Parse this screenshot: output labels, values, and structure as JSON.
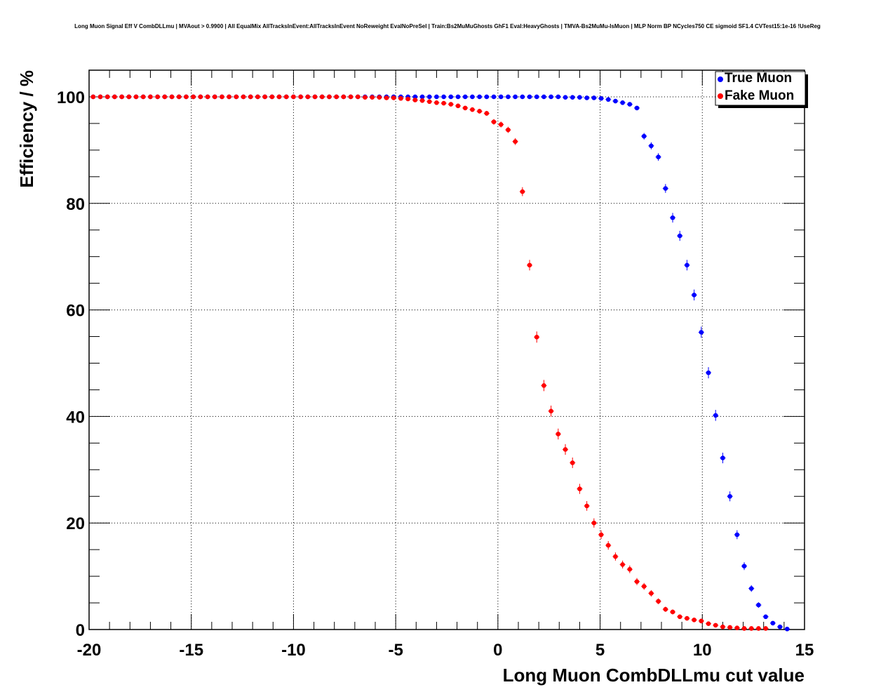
{
  "chart_data": {
    "type": "scatter",
    "title": "Long Muon Signal Eff V CombDLLmu | MVAout > 0.9900 | All EqualMix AllTracksInEvent:AllTracksInEvent NoReweight EvalNoPreSel | Train:Bs2MuMuGhosts GhF1 Eval:HeavyGhosts | TMVA-Bs2MuMu-IsMuon | MLP Norm BP NCycles750 CE sigmoid SF1.4 CVTest15:1e-16 !UseReg",
    "xlabel": "Long Muon CombDLLmu cut value",
    "ylabel": "Efficiency / %",
    "xlim": [
      -20,
      15
    ],
    "ylim": [
      0,
      105
    ],
    "xticks": [
      -20,
      -15,
      -10,
      -5,
      0,
      5,
      10,
      15
    ],
    "yticks": [
      0,
      20,
      40,
      60,
      80,
      100
    ],
    "grid": true,
    "legend_position": "top-right",
    "series": [
      {
        "name": "True Muon",
        "color": "#0000ff",
        "x": [
          -19.8,
          -19.45,
          -19.1,
          -18.75,
          -18.4,
          -18.05,
          -17.7,
          -17.35,
          -17.0,
          -16.65,
          -16.3,
          -15.95,
          -15.6,
          -15.25,
          -14.9,
          -14.55,
          -14.2,
          -13.85,
          -13.5,
          -13.15,
          -12.8,
          -12.45,
          -12.1,
          -11.75,
          -11.4,
          -11.05,
          -10.7,
          -10.35,
          -10.0,
          -9.65,
          -9.3,
          -8.95,
          -8.6,
          -8.25,
          -7.9,
          -7.55,
          -7.2,
          -6.85,
          -6.5,
          -6.15,
          -5.8,
          -5.45,
          -5.1,
          -4.75,
          -4.4,
          -4.05,
          -3.7,
          -3.35,
          -3.0,
          -2.65,
          -2.3,
          -1.95,
          -1.6,
          -1.25,
          -0.9,
          -0.55,
          -0.2,
          0.15,
          0.5,
          0.85,
          1.2,
          1.55,
          1.9,
          2.25,
          2.6,
          2.95,
          3.3,
          3.65,
          4.0,
          4.35,
          4.7,
          5.05,
          5.4,
          5.75,
          6.1,
          6.45,
          6.8,
          7.15,
          7.5,
          7.85,
          8.2,
          8.55,
          8.9,
          9.25,
          9.6,
          9.95,
          10.3,
          10.65,
          11.0,
          11.35,
          11.7,
          12.05,
          12.4,
          12.75,
          13.1,
          13.45,
          13.8,
          14.15
        ],
        "y": [
          100,
          100,
          100,
          100,
          100,
          100,
          100,
          100,
          100,
          100,
          100,
          100,
          100,
          100,
          100,
          100,
          100,
          100,
          100,
          100,
          100,
          100,
          100,
          100,
          100,
          100,
          100,
          100,
          100,
          100,
          100,
          100,
          100,
          100,
          100,
          100,
          100,
          100,
          100,
          100,
          100,
          100,
          100,
          100,
          100,
          100,
          100,
          100,
          100,
          100,
          100,
          100,
          100,
          100,
          100,
          100,
          100,
          100,
          100,
          100,
          100,
          100,
          100,
          100,
          100,
          100,
          99.9,
          99.9,
          99.9,
          99.8,
          99.8,
          99.7,
          99.5,
          99.2,
          98.9,
          98.6,
          97.9,
          92.6,
          90.8,
          88.7,
          82.8,
          77.3,
          73.9,
          68.4,
          62.8,
          55.8,
          48.2,
          40.2,
          32.2,
          25.0,
          17.8,
          11.9,
          7.7,
          4.6,
          2.4,
          1.2,
          0.5,
          0.1
        ]
      },
      {
        "name": "Fake Muon",
        "color": "#ff0000",
        "x": [
          -19.8,
          -19.45,
          -19.1,
          -18.75,
          -18.4,
          -18.05,
          -17.7,
          -17.35,
          -17.0,
          -16.65,
          -16.3,
          -15.95,
          -15.6,
          -15.25,
          -14.9,
          -14.55,
          -14.2,
          -13.85,
          -13.5,
          -13.15,
          -12.8,
          -12.45,
          -12.1,
          -11.75,
          -11.4,
          -11.05,
          -10.7,
          -10.35,
          -10.0,
          -9.65,
          -9.3,
          -8.95,
          -8.6,
          -8.25,
          -7.9,
          -7.55,
          -7.2,
          -6.85,
          -6.5,
          -6.15,
          -5.8,
          -5.45,
          -5.1,
          -4.75,
          -4.4,
          -4.05,
          -3.7,
          -3.35,
          -3.0,
          -2.65,
          -2.3,
          -1.95,
          -1.6,
          -1.25,
          -0.9,
          -0.55,
          -0.2,
          0.15,
          0.5,
          0.85,
          1.2,
          1.55,
          1.9,
          2.25,
          2.6,
          2.95,
          3.3,
          3.65,
          4.0,
          4.35,
          4.7,
          5.05,
          5.4,
          5.75,
          6.1,
          6.45,
          6.8,
          7.15,
          7.5,
          7.85,
          8.2,
          8.55,
          8.9,
          9.25,
          9.6,
          9.95,
          10.3,
          10.65,
          11.0,
          11.35,
          11.7,
          12.05,
          12.4,
          12.75,
          13.1
        ],
        "y": [
          100,
          100,
          100,
          100,
          100,
          100,
          100,
          100,
          100,
          100,
          100,
          100,
          100,
          100,
          100,
          100,
          100,
          100,
          100,
          100,
          100,
          100,
          100,
          100,
          100,
          100,
          100,
          100,
          100,
          100,
          100,
          100,
          100,
          100,
          100,
          100,
          100,
          100,
          99.9,
          99.9,
          99.9,
          99.8,
          99.8,
          99.7,
          99.6,
          99.4,
          99.3,
          99.1,
          98.9,
          98.8,
          98.6,
          98.3,
          97.9,
          97.6,
          97.3,
          96.9,
          95.3,
          94.8,
          93.8,
          91.6,
          82.2,
          68.4,
          54.9,
          45.8,
          41.0,
          36.7,
          33.8,
          31.3,
          26.4,
          23.2,
          20.0,
          17.8,
          15.8,
          13.7,
          12.2,
          11.3,
          9.0,
          8.1,
          6.8,
          5.3,
          3.8,
          3.3,
          2.4,
          2.1,
          1.8,
          1.6,
          1.1,
          0.8,
          0.5,
          0.4,
          0.3,
          0.2,
          0.2,
          0.2,
          0.2
        ]
      }
    ]
  }
}
